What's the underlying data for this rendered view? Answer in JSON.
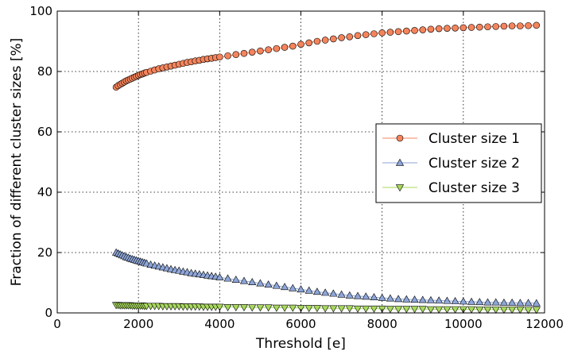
{
  "chart_data": {
    "type": "scatter",
    "title": "",
    "xlabel": "Threshold [e]",
    "ylabel": "Fraction of different cluster sizes [%]",
    "xlim": [
      0,
      12000
    ],
    "ylim": [
      0,
      100
    ],
    "xticks": [
      0,
      2000,
      4000,
      6000,
      8000,
      10000,
      12000
    ],
    "yticks": [
      0,
      20,
      40,
      60,
      80,
      100
    ],
    "grid": true,
    "legend_position": "center-right",
    "colors": {
      "Cluster size 1": "#f4845c",
      "Cluster size 2": "#8ea6d8",
      "Cluster size 3": "#a8d95e"
    },
    "series": [
      {
        "name": "Cluster size 1",
        "marker": "circle",
        "x": [
          1450,
          1500,
          1550,
          1600,
          1650,
          1700,
          1750,
          1800,
          1850,
          1900,
          1950,
          2000,
          2050,
          2100,
          2150,
          2200,
          2300,
          2400,
          2500,
          2600,
          2700,
          2800,
          2900,
          3000,
          3100,
          3200,
          3300,
          3400,
          3500,
          3600,
          3700,
          3800,
          3900,
          4000,
          4200,
          4400,
          4600,
          4800,
          5000,
          5200,
          5400,
          5600,
          5800,
          6000,
          6200,
          6400,
          6600,
          6800,
          7000,
          7200,
          7400,
          7600,
          7800,
          8000,
          8200,
          8400,
          8600,
          8800,
          9000,
          9200,
          9400,
          9600,
          9800,
          10000,
          10200,
          10400,
          10600,
          10800,
          11000,
          11200,
          11400,
          11600,
          11800
        ],
        "y": [
          74.8,
          75.3,
          75.7,
          76.1,
          76.5,
          76.9,
          77.2,
          77.5,
          77.8,
          78.1,
          78.4,
          78.7,
          79.0,
          79.2,
          79.5,
          79.7,
          80.1,
          80.5,
          80.9,
          81.2,
          81.5,
          81.8,
          82.1,
          82.4,
          82.7,
          83.0,
          83.2,
          83.5,
          83.7,
          84.0,
          84.2,
          84.4,
          84.6,
          84.8,
          85.2,
          85.6,
          86.0,
          86.4,
          86.8,
          87.2,
          87.6,
          88.0,
          88.4,
          89.0,
          89.5,
          90.0,
          90.4,
          90.8,
          91.2,
          91.5,
          91.9,
          92.2,
          92.5,
          92.8,
          93.0,
          93.2,
          93.4,
          93.6,
          93.8,
          94.0,
          94.2,
          94.3,
          94.4,
          94.5,
          94.6,
          94.7,
          94.8,
          94.9,
          95.0,
          95.1,
          95.1,
          95.2,
          95.3
        ]
      },
      {
        "name": "Cluster size 2",
        "marker": "triangle-up",
        "x": [
          1450,
          1500,
          1550,
          1600,
          1650,
          1700,
          1750,
          1800,
          1850,
          1900,
          1950,
          2000,
          2050,
          2100,
          2150,
          2200,
          2300,
          2400,
          2500,
          2600,
          2700,
          2800,
          2900,
          3000,
          3100,
          3200,
          3300,
          3400,
          3500,
          3600,
          3700,
          3800,
          3900,
          4000,
          4200,
          4400,
          4600,
          4800,
          5000,
          5200,
          5400,
          5600,
          5800,
          6000,
          6200,
          6400,
          6600,
          6800,
          7000,
          7200,
          7400,
          7600,
          7800,
          8000,
          8200,
          8400,
          8600,
          8800,
          9000,
          9200,
          9400,
          9600,
          9800,
          10000,
          10200,
          10400,
          10600,
          10800,
          11000,
          11200,
          11400,
          11600,
          11800
        ],
        "y": [
          20.0,
          19.7,
          19.4,
          19.1,
          18.8,
          18.5,
          18.3,
          18.0,
          17.8,
          17.6,
          17.4,
          17.2,
          17.0,
          16.8,
          16.6,
          16.4,
          16.0,
          15.7,
          15.4,
          15.1,
          14.8,
          14.5,
          14.2,
          14.0,
          13.7,
          13.5,
          13.2,
          13.0,
          12.8,
          12.6,
          12.4,
          12.2,
          12.0,
          11.8,
          11.4,
          11.0,
          10.6,
          10.2,
          9.8,
          9.4,
          9.0,
          8.6,
          8.2,
          7.8,
          7.4,
          7.0,
          6.7,
          6.4,
          6.1,
          5.8,
          5.6,
          5.4,
          5.2,
          5.0,
          4.8,
          4.6,
          4.5,
          4.4,
          4.3,
          4.2,
          4.1,
          4.0,
          3.9,
          3.8,
          3.7,
          3.6,
          3.5,
          3.5,
          3.4,
          3.4,
          3.3,
          3.3,
          3.2
        ]
      },
      {
        "name": "Cluster size 3",
        "marker": "triangle-down",
        "x": [
          1450,
          1500,
          1550,
          1600,
          1650,
          1700,
          1750,
          1800,
          1850,
          1900,
          1950,
          2000,
          2050,
          2100,
          2150,
          2200,
          2300,
          2400,
          2500,
          2600,
          2700,
          2800,
          2900,
          3000,
          3100,
          3200,
          3300,
          3400,
          3500,
          3600,
          3700,
          3800,
          3900,
          4000,
          4200,
          4400,
          4600,
          4800,
          5000,
          5200,
          5400,
          5600,
          5800,
          6000,
          6200,
          6400,
          6600,
          6800,
          7000,
          7200,
          7400,
          7600,
          7800,
          8000,
          8200,
          8400,
          8600,
          8800,
          9000,
          9200,
          9400,
          9600,
          9800,
          10000,
          10200,
          10400,
          10600,
          10800,
          11000,
          11200,
          11400,
          11600,
          11800
        ],
        "y": [
          2.6,
          2.6,
          2.5,
          2.5,
          2.5,
          2.5,
          2.5,
          2.5,
          2.4,
          2.4,
          2.4,
          2.4,
          2.4,
          2.4,
          2.3,
          2.3,
          2.3,
          2.3,
          2.3,
          2.2,
          2.2,
          2.2,
          2.2,
          2.2,
          2.1,
          2.1,
          2.1,
          2.1,
          2.1,
          2.0,
          2.0,
          2.0,
          2.0,
          2.0,
          1.9,
          1.9,
          1.9,
          1.8,
          1.8,
          1.8,
          1.7,
          1.7,
          1.7,
          1.6,
          1.6,
          1.6,
          1.5,
          1.5,
          1.5,
          1.5,
          1.4,
          1.4,
          1.4,
          1.4,
          1.3,
          1.3,
          1.3,
          1.3,
          1.3,
          1.2,
          1.2,
          1.2,
          1.2,
          1.2,
          1.2,
          1.1,
          1.1,
          1.1,
          1.1,
          1.1,
          1.1,
          1.0,
          1.0
        ]
      }
    ]
  }
}
